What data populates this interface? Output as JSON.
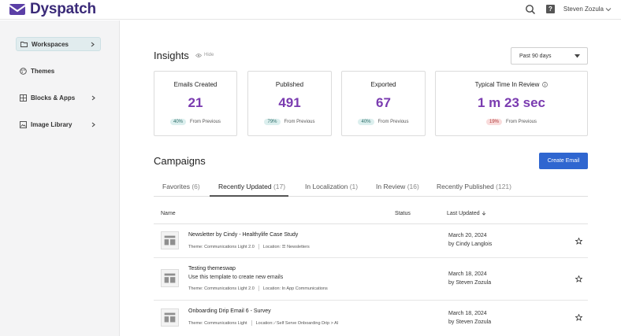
{
  "app": {
    "name": "Dyspatch"
  },
  "topbar": {
    "help_label": "?",
    "user_name": "Steven Zozula"
  },
  "sidebar": {
    "items": [
      {
        "label": "Workspaces"
      },
      {
        "label": "Themes"
      },
      {
        "label": "Blocks & Apps"
      },
      {
        "label": "Image Library"
      }
    ]
  },
  "insights": {
    "title": "Insights",
    "hide_label": "Hide",
    "period": "Past 90 days",
    "cards": [
      {
        "title": "Emails Created",
        "value": "21",
        "badge": "40%",
        "badge_label": "From Previous"
      },
      {
        "title": "Published",
        "value": "491",
        "badge": "79%",
        "badge_label": "From Previous"
      },
      {
        "title": "Exported",
        "value": "67",
        "badge": "40%",
        "badge_label": "From Previous"
      },
      {
        "title": "Typical Time In Review",
        "value": "1 m 23 sec",
        "badge": "19%",
        "badge_label": "From Previous"
      }
    ]
  },
  "campaigns": {
    "title": "Campaigns",
    "create_label": "Create Email",
    "tabs": [
      {
        "label": "Favorites",
        "count": "(6)"
      },
      {
        "label": "Recently Updated",
        "count": "(17)"
      },
      {
        "label": "In Localization",
        "count": "(1)"
      },
      {
        "label": "In Review",
        "count": "(16)"
      },
      {
        "label": "Recently Published",
        "count": "(121)"
      }
    ],
    "columns": {
      "name": "Name",
      "status": "Status",
      "updated": "Last Updated"
    },
    "rows": [
      {
        "title": "Newsletter by Cindy - Healthylife Case Study",
        "desc": "",
        "theme": "Theme: Communications Light 2.0",
        "location": "Location: ☰ Newsletters",
        "date": "March 20, 2024",
        "by": "by Cindy Langlois"
      },
      {
        "title": "Testing themeswap",
        "desc": "Use this template to create new emails",
        "theme": "Theme: Communications Light 2.0",
        "location": "Location: In App Communications",
        "date": "March 18, 2024",
        "by": "by Steven Zozula"
      },
      {
        "title": "Onboarding Drip Email 6 - Survey",
        "desc": "",
        "theme": "Theme: Communications Light",
        "location": "Location: ∕ Self Serve Onboarding Drip > AI",
        "date": "March 18, 2024",
        "by": "by Steven Zozula"
      }
    ]
  },
  "colors": {
    "brand": "#3a2a78",
    "stat_value": "#7a3bb0",
    "primary_button": "#2f66d0",
    "badge_up": "#dcefee",
    "badge_down": "#f9dcdc"
  }
}
